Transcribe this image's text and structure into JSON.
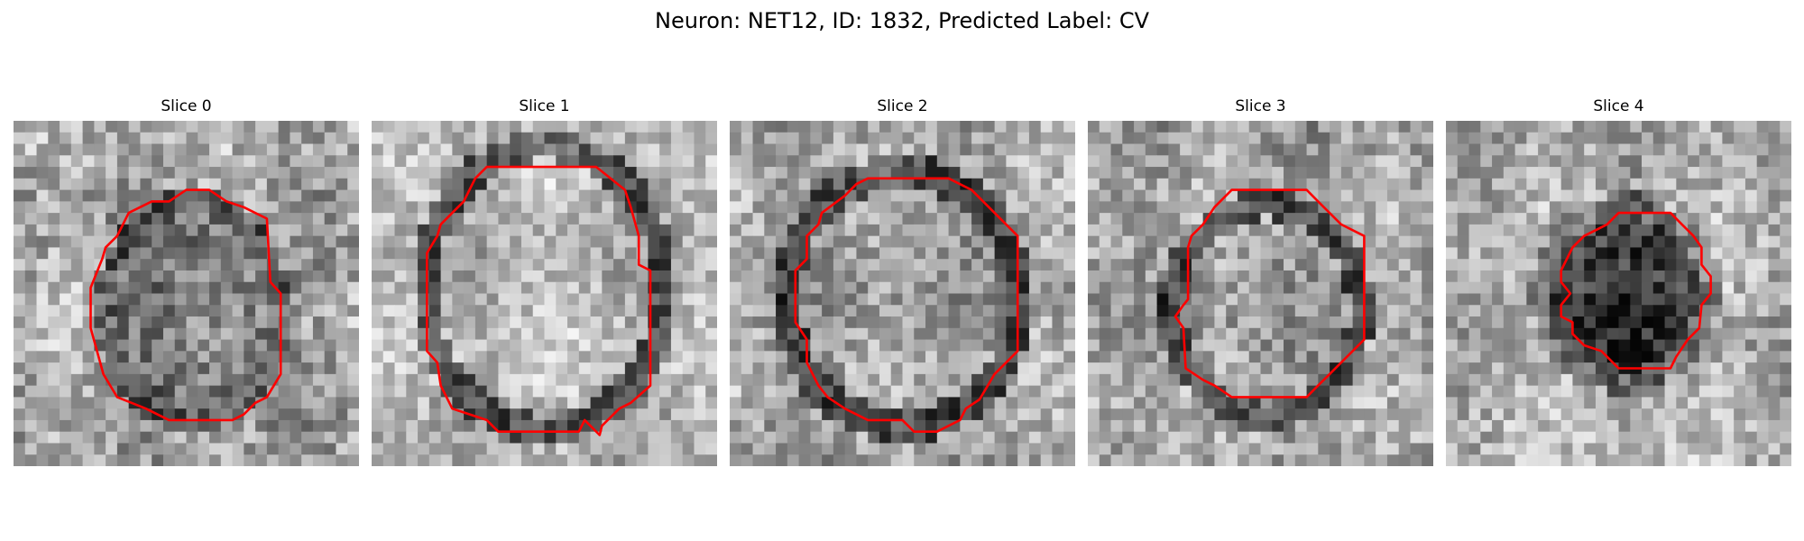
{
  "title": "Neuron: NET12, ID: 1832, Predicted Label: CV",
  "panels": [
    {
      "title": "Slice 0",
      "tone": "cell-dim",
      "seed": 11
    },
    {
      "title": "Slice 1",
      "tone": "cell-bright",
      "seed": 23
    },
    {
      "title": "Slice 2",
      "tone": "cell-medium",
      "seed": 37
    },
    {
      "title": "Slice 3",
      "tone": "cell-medium",
      "seed": 41
    },
    {
      "title": "Slice 4",
      "tone": "cell-dark",
      "seed": 53
    }
  ],
  "colors": {
    "background": "#ffffff",
    "contour": "#ff0000",
    "text": "#000000"
  }
}
